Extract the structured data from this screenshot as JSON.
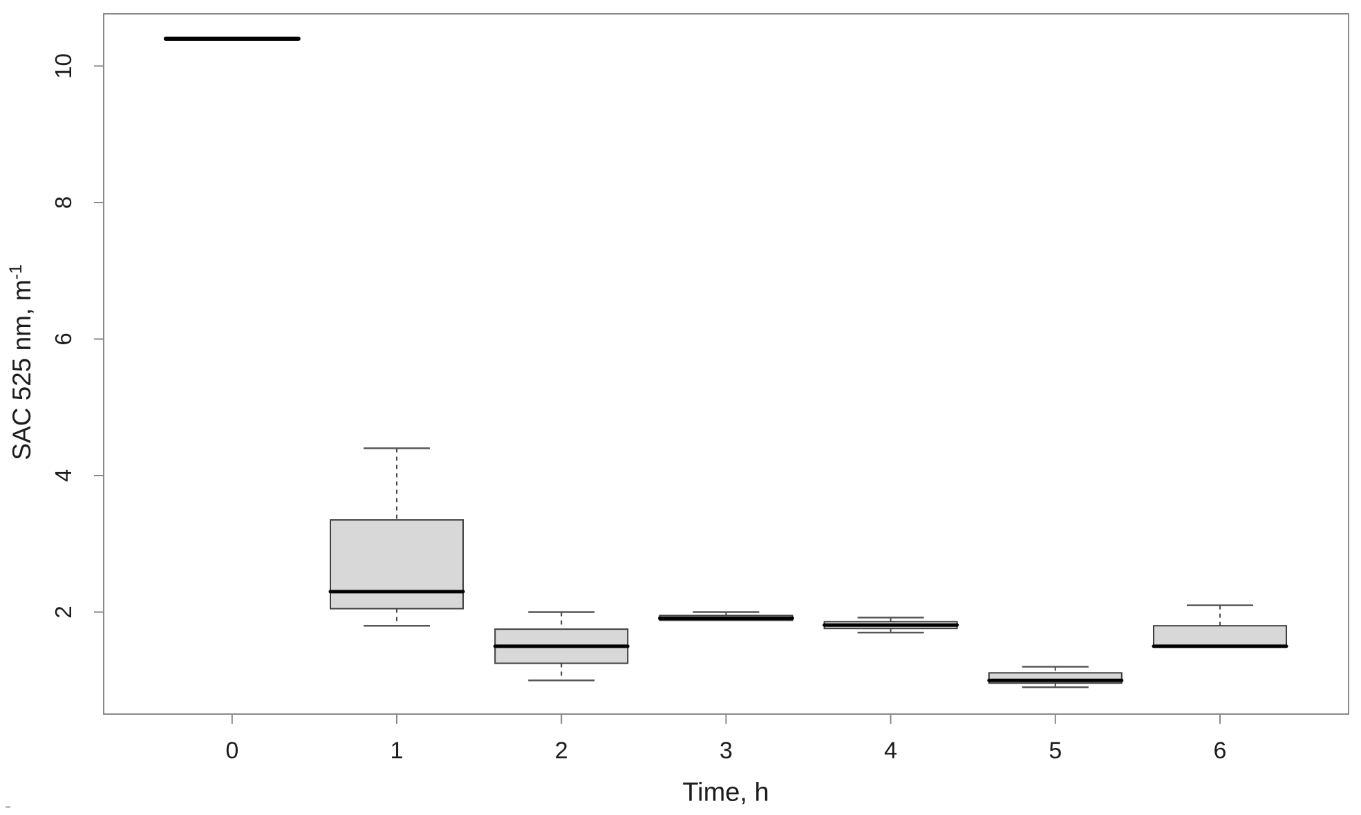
{
  "chart_data": {
    "type": "boxplot",
    "title": "",
    "xlabel": "Time, h",
    "ylabel": {
      "text": "SAC 525 nm, m",
      "superscript": "-1"
    },
    "x_categories": [
      "0",
      "1",
      "2",
      "3",
      "4",
      "5",
      "6"
    ],
    "y_ticks": [
      2,
      4,
      6,
      8,
      10
    ],
    "ylim": [
      0.5,
      10.8
    ],
    "grid": false,
    "legend": "none",
    "boxes": [
      {
        "category": "0",
        "whisker_low": 10.4,
        "q1": 10.4,
        "median": 10.4,
        "q3": 10.4,
        "whisker_high": 10.4
      },
      {
        "category": "1",
        "whisker_low": 1.8,
        "q1": 2.05,
        "median": 2.3,
        "q3": 3.35,
        "whisker_high": 4.4
      },
      {
        "category": "2",
        "whisker_low": 1.0,
        "q1": 1.25,
        "median": 1.5,
        "q3": 1.75,
        "whisker_high": 2.0
      },
      {
        "category": "3",
        "whisker_low": 1.88,
        "q1": 1.88,
        "median": 1.91,
        "q3": 1.95,
        "whisker_high": 2.0
      },
      {
        "category": "4",
        "whisker_low": 1.7,
        "q1": 1.76,
        "median": 1.81,
        "q3": 1.86,
        "whisker_high": 1.92
      },
      {
        "category": "5",
        "whisker_low": 0.9,
        "q1": 0.96,
        "median": 1.0,
        "q3": 1.11,
        "whisker_high": 1.2
      },
      {
        "category": "6",
        "whisker_low": 1.5,
        "q1": 1.5,
        "median": 1.5,
        "q3": 1.8,
        "whisker_high": 2.1
      }
    ],
    "colors": {
      "box_fill": "#d8d8d8",
      "box_stroke": "#3d3d3d",
      "median": "#000000",
      "whisker": "#4a4a4a",
      "cap": "#565656",
      "axis": "#898989",
      "text": "#1c1c1c"
    }
  }
}
